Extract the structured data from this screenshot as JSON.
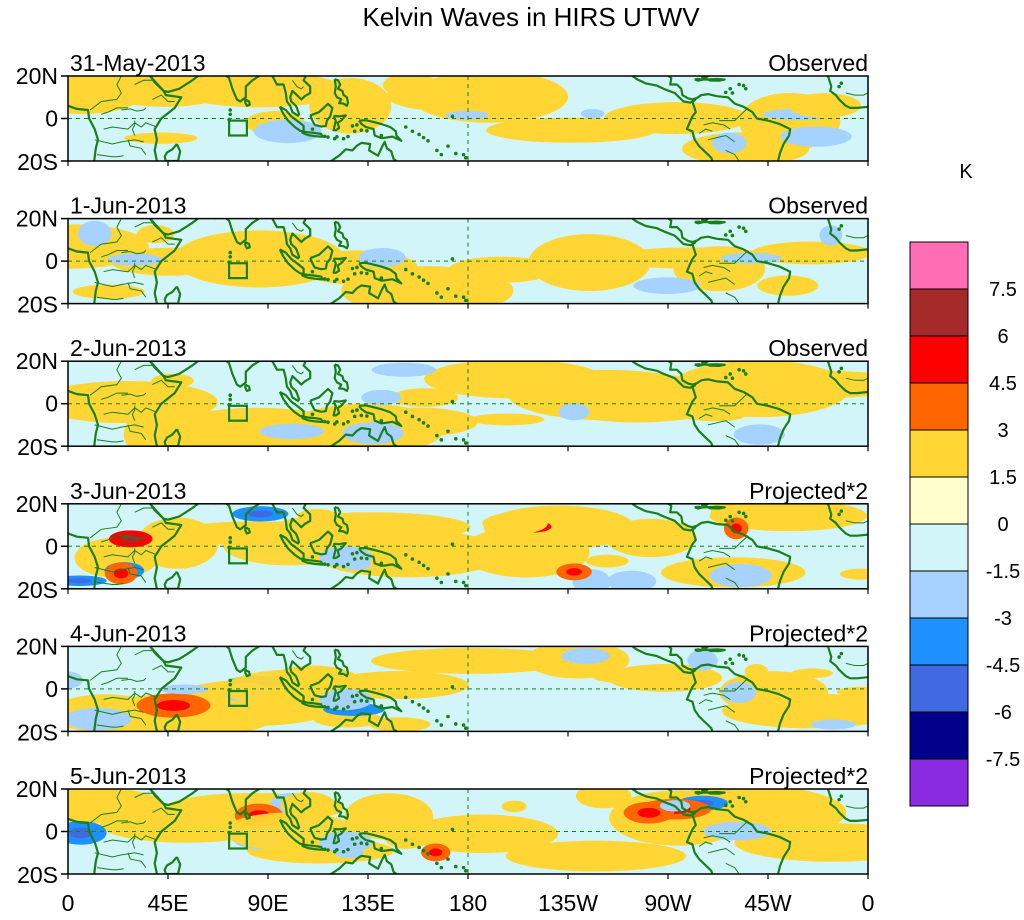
{
  "title": "Kelvin Waves in HIRS UTWV",
  "x_ticks": [
    "0",
    "45E",
    "90E",
    "135E",
    "180",
    "135W",
    "90W",
    "45W",
    "0"
  ],
  "y_ticks": [
    "20N",
    "0",
    "20S"
  ],
  "panels": [
    {
      "date": "31-May-2013",
      "type": "Observed",
      "amp": 0.8,
      "pattern": 0
    },
    {
      "date": "1-Jun-2013",
      "type": "Observed",
      "amp": 0.9,
      "pattern": 1
    },
    {
      "date": "2-Jun-2013",
      "type": "Observed",
      "amp": 1.0,
      "pattern": 2
    },
    {
      "date": "3-Jun-2013",
      "type": "Projected*2",
      "amp": 2.4,
      "pattern": 3
    },
    {
      "date": "4-Jun-2013",
      "type": "Projected*2",
      "amp": 2.0,
      "pattern": 4
    },
    {
      "date": "5-Jun-2013",
      "type": "Projected*2",
      "amp": 1.8,
      "pattern": 5
    }
  ],
  "colorbar": {
    "unit": "K",
    "labels": [
      "7.5",
      "6",
      "4.5",
      "3",
      "1.5",
      "0",
      "-1.5",
      "-3",
      "-4.5",
      "-6",
      "-7.5"
    ],
    "colors_top_to_bottom": [
      "#ff6eb4",
      "#a52a2a",
      "#ff0000",
      "#ff6600",
      "#ffd633",
      "#ffffcc",
      "#d2f5fa",
      "#a5d2ff",
      "#1e90ff",
      "#4169e1",
      "#00008b",
      "#8a2be2"
    ]
  },
  "map_style": {
    "coast_color": "#1a7f1a",
    "border_color": "#1a7f1a",
    "grid_color": "#1a7f1a",
    "default_fill": "#d2f5fa",
    "box_color": "#1a7f1a"
  }
}
